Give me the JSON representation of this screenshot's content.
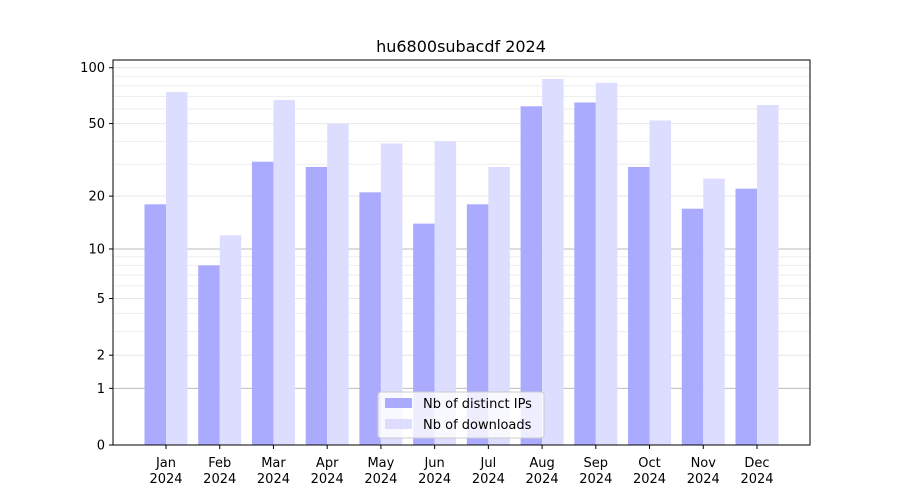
{
  "chart_data": {
    "type": "bar",
    "title": "hu6800subacdf 2024",
    "xlabel": "",
    "ylabel": "",
    "yscale": "log(1+x)",
    "ylim": [
      0,
      110
    ],
    "yticks": [
      0,
      1,
      2,
      5,
      10,
      20,
      50,
      100
    ],
    "grid": true,
    "legend_placement": "bottom-center",
    "categories": [
      "Jan\n2024",
      "Feb\n2024",
      "Mar\n2024",
      "Apr\n2024",
      "May\n2024",
      "Jun\n2024",
      "Jul\n2024",
      "Aug\n2024",
      "Sep\n2024",
      "Oct\n2024",
      "Nov\n2024",
      "Dec\n2024"
    ],
    "series": [
      {
        "name": "Nb of distinct IPs",
        "color": "#aaaaff",
        "values": [
          18,
          8,
          31,
          29,
          21,
          14,
          18,
          62,
          65,
          29,
          17,
          22
        ]
      },
      {
        "name": "Nb of downloads",
        "color": "#ddddff",
        "values": [
          74,
          12,
          67,
          50,
          39,
          40,
          29,
          87,
          83,
          52,
          25,
          63
        ]
      }
    ]
  }
}
